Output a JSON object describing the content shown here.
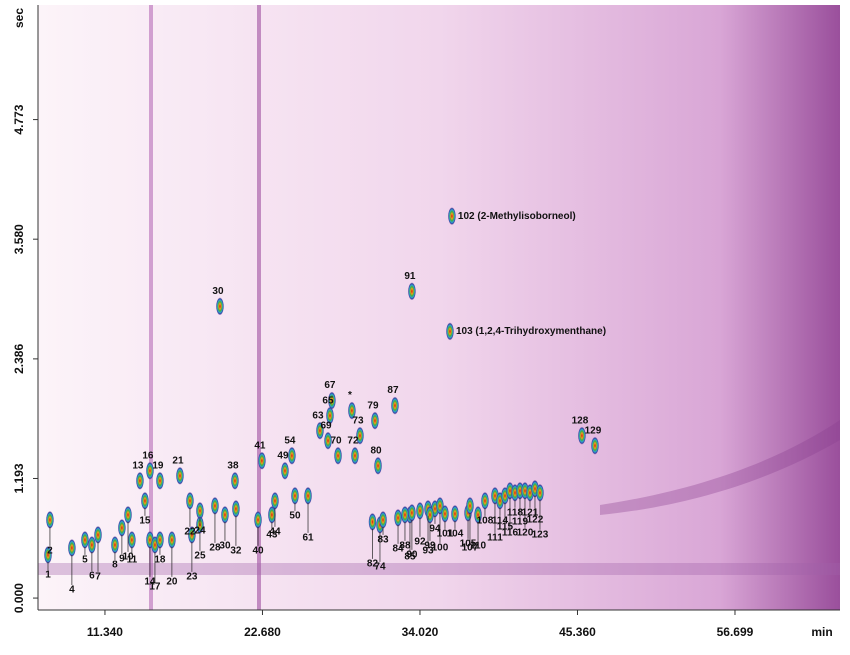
{
  "chart_data": {
    "type": "gcxgc",
    "x_label": "min",
    "y_label": "sec",
    "xlim": [
      6.52,
      64.26
    ],
    "ylim": [
      -0.119,
      5.916
    ],
    "xticks": [
      {
        "value": 11.34,
        "label": "11.340"
      },
      {
        "value": 22.68,
        "label": "22.680"
      },
      {
        "value": 34.02,
        "label": "34.020"
      },
      {
        "value": 45.36,
        "label": "45.360"
      },
      56.699
    ],
    "yticks": [
      {
        "value": 0,
        "label": "0.000"
      },
      1.193,
      2.386,
      {
        "value": 3.58,
        "label": "3.580"
      },
      4.773
    ],
    "labels": [
      "1",
      "2",
      "4",
      "5",
      "6",
      "7",
      "8",
      "9",
      "10",
      "11",
      "13",
      "14",
      "15",
      "16",
      "17",
      "18",
      "19",
      "20",
      "21",
      "22",
      "23",
      "24",
      "25",
      "28",
      "30",
      "30",
      "32",
      "38",
      "40",
      "41",
      "43",
      "44",
      "49",
      "50",
      "54",
      "61",
      "63",
      "65",
      "67",
      "69",
      "70",
      "72",
      "73",
      "*",
      "74",
      "79",
      "80",
      "82",
      "83",
      "84",
      "85",
      "87",
      "88",
      "90",
      "91",
      "92",
      "93",
      "94",
      "99",
      "100",
      "101",
      "102 (2-Methylisoborneol)",
      "103 (1,2,4-Trihydroxymenthane)",
      "104",
      "105",
      "107",
      "108",
      "110",
      "111",
      "114",
      "115",
      "116",
      "118",
      "119",
      "120",
      "121",
      "122",
      "123",
      "128",
      "129"
    ],
    "x": [
      7.24,
      7.38,
      8.96,
      9.9,
      10.4,
      10.84,
      12.06,
      12.56,
      13.0,
      13.28,
      13.86,
      14.58,
      14.22,
      14.58,
      14.94,
      15.3,
      15.3,
      16.16,
      16.74,
      17.46,
      17.6,
      18.18,
      18.18,
      19.26,
      19.62,
      19.98,
      20.77,
      20.7,
      22.36,
      22.64,
      23.36,
      23.58,
      24.3,
      25.02,
      24.8,
      25.96,
      26.82,
      27.54,
      27.68,
      27.4,
      28.12,
      29.34,
      29.7,
      29.12,
      31.14,
      30.78,
      31.0,
      30.6,
      31.36,
      32.44,
      33.3,
      32.22,
      32.94,
      33.44,
      33.44,
      34.02,
      34.6,
      35.1,
      34.74,
      35.46,
      35.82,
      36.32,
      36.18,
      36.54,
      37.48,
      37.62,
      38.7,
      38.2,
      39.42,
      39.78,
      40.14,
      40.5,
      40.86,
      41.22,
      41.58,
      41.94,
      42.3,
      42.66,
      45.68,
      46.62
    ],
    "values": [
      0.43,
      0.78,
      0.5,
      0.58,
      0.53,
      0.63,
      0.53,
      0.7,
      0.83,
      0.58,
      1.17,
      0.58,
      0.97,
      1.27,
      0.53,
      0.58,
      1.17,
      0.58,
      1.22,
      0.97,
      0.63,
      0.87,
      0.73,
      0.92,
      2.91,
      0.83,
      0.89,
      1.17,
      0.78,
      1.37,
      0.83,
      0.97,
      1.27,
      1.02,
      1.42,
      1.02,
      1.67,
      1.82,
      1.97,
      1.57,
      1.42,
      1.42,
      1.62,
      1.87,
      0.73,
      1.77,
      1.32,
      0.76,
      0.78,
      0.8,
      0.83,
      1.92,
      0.83,
      0.85,
      3.06,
      0.87,
      0.89,
      0.89,
      0.83,
      0.92,
      0.84,
      3.81,
      2.66,
      0.84,
      0.85,
      0.92,
      0.97,
      0.83,
      1.02,
      0.97,
      1.02,
      1.07,
      1.05,
      1.07,
      1.07,
      1.05,
      1.09,
      1.05,
      1.62,
      1.52
    ]
  }
}
